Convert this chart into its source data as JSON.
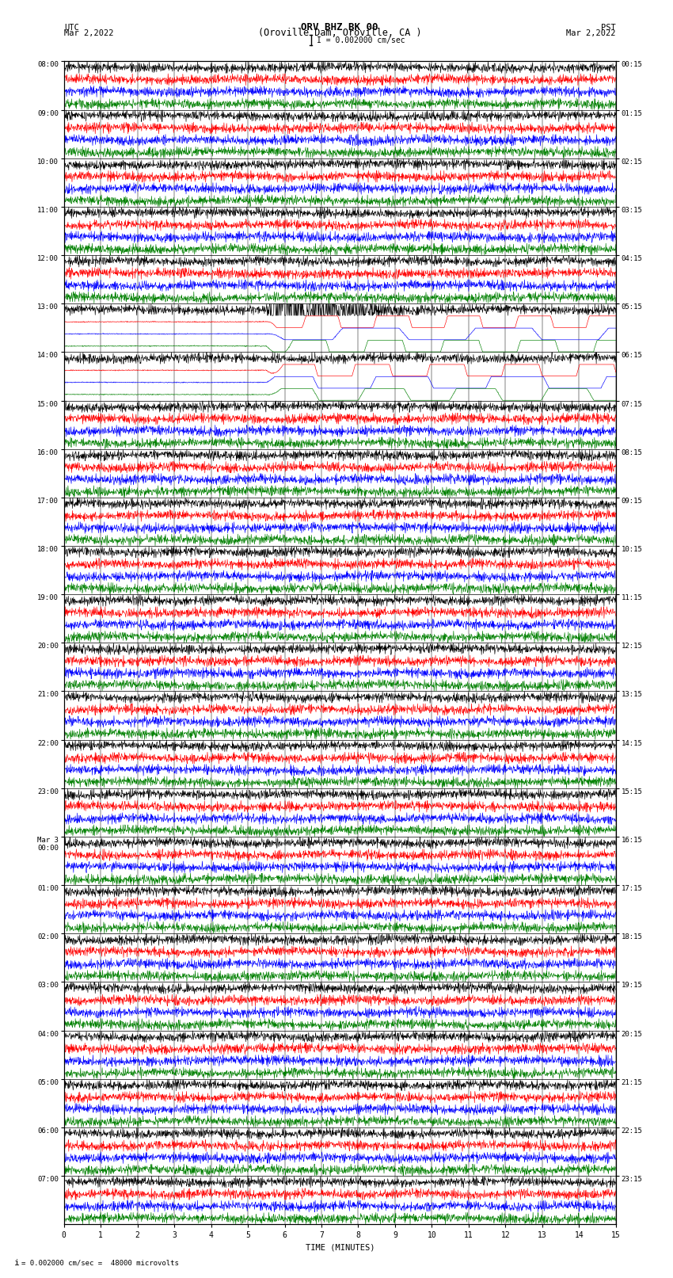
{
  "title_line1": "ORV BHZ BK 00",
  "title_line2": "(Oroville Dam, Oroville, CA )",
  "scale_text": "I = 0.002000 cm/sec",
  "bottom_text": "= 0.002000 cm/sec =  48000 microvolts",
  "utc_label": "UTC",
  "pst_label": "PST",
  "date_left": "Mar 2,2022",
  "date_right": "Mar 2,2022",
  "xlabel": "TIME (MINUTES)",
  "left_times": [
    "08:00",
    "09:00",
    "10:00",
    "11:00",
    "12:00",
    "13:00",
    "14:00",
    "15:00",
    "16:00",
    "17:00",
    "18:00",
    "19:00",
    "20:00",
    "21:00",
    "22:00",
    "23:00",
    "Mar 3\n00:00",
    "01:00",
    "02:00",
    "03:00",
    "04:00",
    "05:00",
    "06:00",
    "07:00"
  ],
  "right_times": [
    "00:15",
    "01:15",
    "02:15",
    "03:15",
    "04:15",
    "05:15",
    "06:15",
    "07:15",
    "08:15",
    "09:15",
    "10:15",
    "11:15",
    "12:15",
    "13:15",
    "14:15",
    "15:15",
    "16:15",
    "17:15",
    "18:15",
    "19:15",
    "20:15",
    "21:15",
    "22:15",
    "23:15"
  ],
  "n_rows": 24,
  "traces_per_row": 4,
  "colors": [
    "black",
    "red",
    "blue",
    "green"
  ],
  "xlim": [
    0,
    15
  ],
  "xticks": [
    0,
    1,
    2,
    3,
    4,
    5,
    6,
    7,
    8,
    9,
    10,
    11,
    12,
    13,
    14,
    15
  ],
  "bg_color": "white",
  "line_width": 0.45,
  "earthquake_row": 5,
  "earthquake_minute": 5.5,
  "large_wave_rows": [
    5,
    6
  ],
  "large_wave_traces": [
    1,
    2,
    3
  ]
}
